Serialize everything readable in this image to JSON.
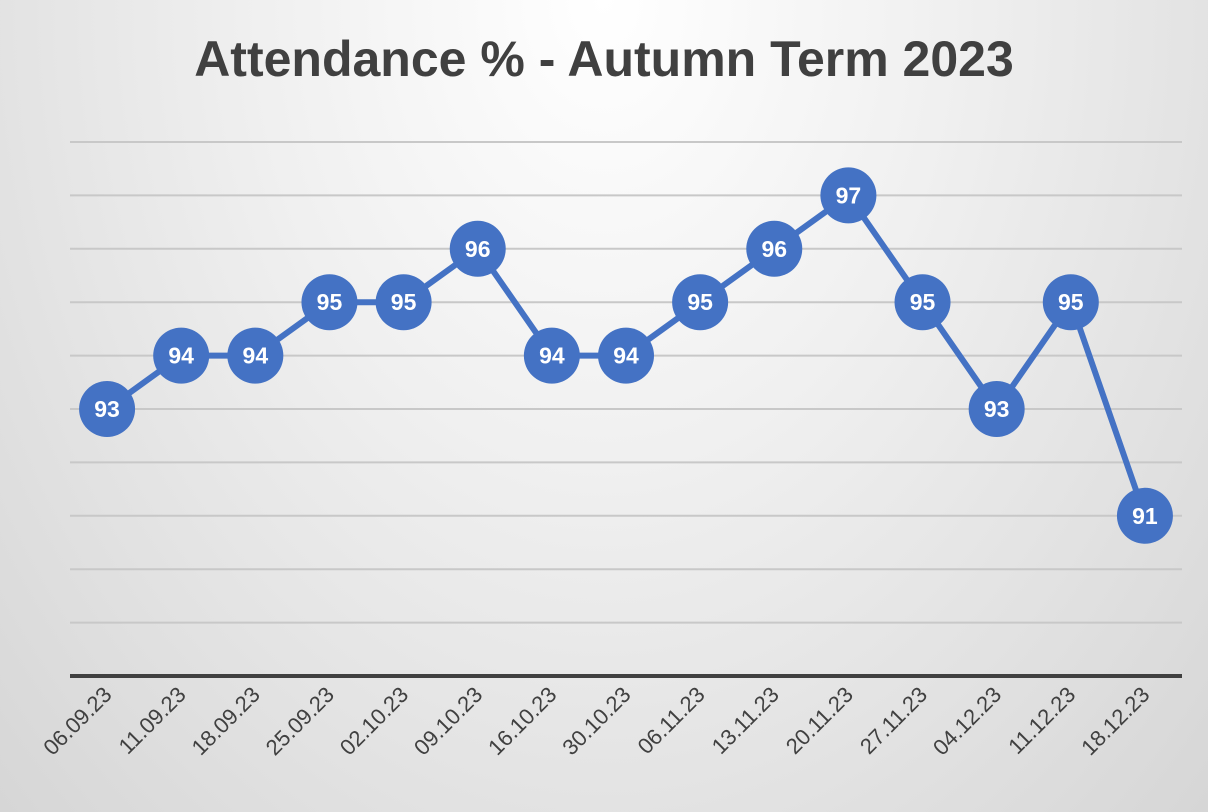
{
  "chart_data": {
    "type": "line",
    "title": "Attendance % - Autumn Term 2023",
    "xlabel": "",
    "ylabel": "",
    "categories": [
      "06.09.23",
      "11.09.23",
      "18.09.23",
      "25.09.23",
      "02.10.23",
      "09.10.23",
      "16.10.23",
      "30.10.23",
      "06.11.23",
      "13.11.23",
      "20.11.23",
      "27.11.23",
      "04.12.23",
      "11.12.23",
      "18.12.23"
    ],
    "series": [
      {
        "values": [
          93,
          94,
          94,
          95,
          95,
          96,
          94,
          94,
          95,
          96,
          97,
          95,
          93,
          95,
          91
        ]
      }
    ],
    "ylim": [
      88,
      98
    ],
    "grid": true,
    "data_labels": true,
    "y_tick_labels_visible": false,
    "legend": "none",
    "colors": {
      "series": "#4472c4",
      "label_text": "#ffffff",
      "title": "#404040",
      "axis": "#404040"
    }
  }
}
